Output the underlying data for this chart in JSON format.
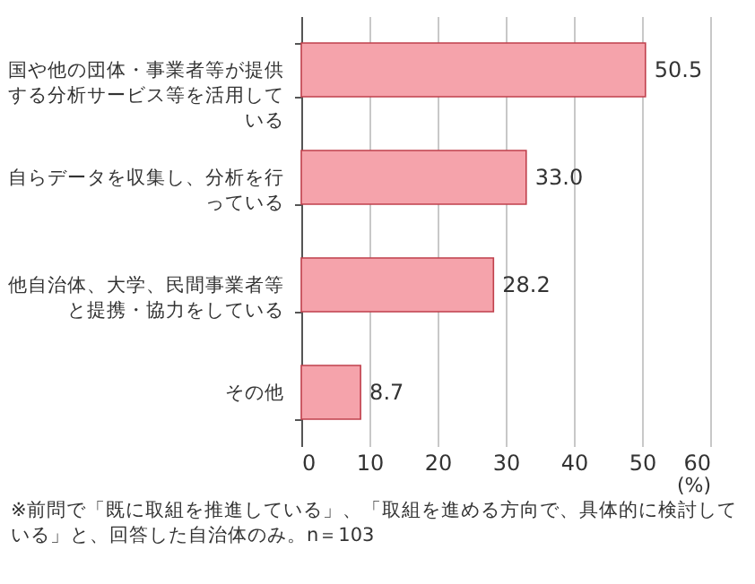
{
  "chart_data": {
    "type": "bar",
    "orientation": "horizontal",
    "categories": [
      "国や他の団体・事業者等が提供する分析サービス等を活用している",
      "自らデータを収集し、分析を行っている",
      "他自治体、大学、民間事業者等と提携・協力をしている",
      "その他"
    ],
    "values": [
      50.5,
      33.0,
      28.2,
      8.7
    ],
    "value_labels": [
      "50.5",
      "33.0",
      "28.2",
      "8.7"
    ],
    "color": "#f5a3ab",
    "xlim": [
      0,
      60
    ],
    "xticks": [
      0,
      10,
      20,
      30,
      40,
      50,
      60
    ],
    "xlabel": "(%)",
    "grid": "x",
    "annotations": [
      "※前問で「既に取組を推進している」、「取組を進める方向で、具体的に検討している」と、回答した自治体のみ。n＝103"
    ]
  }
}
